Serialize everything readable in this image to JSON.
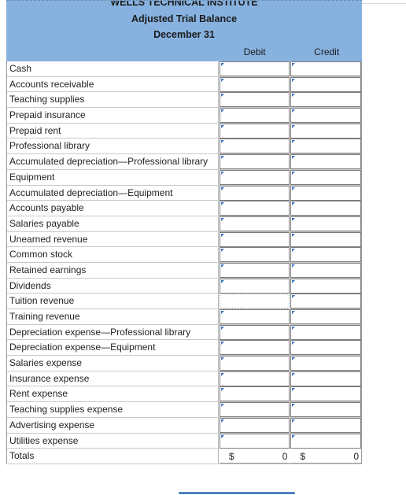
{
  "header": {
    "company": "WELLS TECHNICAL INSTITUTE",
    "title": "Adjusted Trial Balance",
    "date": "December 31"
  },
  "columns": {
    "debit": "Debit",
    "credit": "Credit"
  },
  "accounts": [
    "Cash",
    "Accounts receivable",
    "Teaching supplies",
    "Prepaid insurance",
    "Prepaid rent",
    "Professional library",
    "Accumulated depreciation—Professional library",
    "Equipment",
    "Accumulated depreciation—Equipment",
    "Accounts payable",
    "Salaries payable",
    "Unearned revenue",
    "Common stock",
    "Retained earnings",
    "Dividends",
    "Tuition revenue",
    "Training revenue",
    "Depreciation expense—Professional library",
    "Depreciation expense—Equipment",
    "Salaries expense",
    "Insurance expense",
    "Rent expense",
    "Teaching supplies expense",
    "Advertising expense",
    "Utilities expense"
  ],
  "totals": {
    "label": "Totals",
    "debit_currency": "$",
    "debit_value": "0",
    "credit_currency": "$",
    "credit_value": "0"
  }
}
